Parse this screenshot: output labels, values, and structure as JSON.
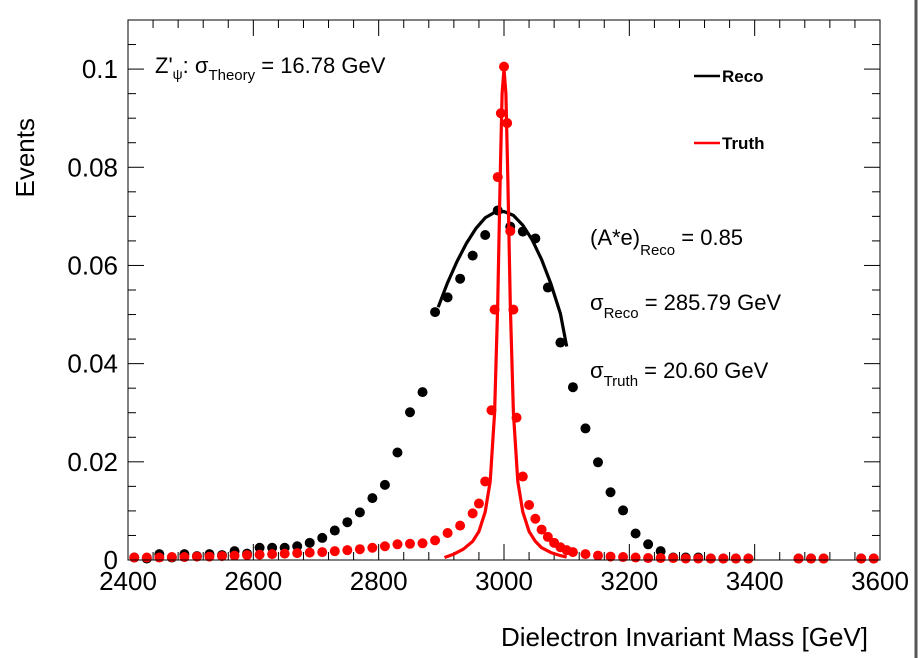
{
  "chart_data": {
    "type": "scatter",
    "xlabel": "Dielectron Invariant Mass [GeV]",
    "ylabel": "Events",
    "xlim": [
      2400,
      3600
    ],
    "ylim": [
      0,
      0.11
    ],
    "xticks": [
      "2400",
      "2600",
      "2800",
      "3000",
      "3200",
      "3400",
      "3600"
    ],
    "yticks": [
      "0",
      "0.02",
      "0.04",
      "0.06",
      "0.08",
      "0.1"
    ],
    "ytick_values": [
      0,
      0.02,
      0.04,
      0.06,
      0.08,
      0.1
    ],
    "xtick_values": [
      2400,
      2600,
      2800,
      3000,
      3200,
      3400,
      3600
    ],
    "grid": false,
    "legend_position": "top-right",
    "colors": {
      "reco": "#000000",
      "truth": "#ff0000"
    },
    "legend": [
      {
        "label": "Reco",
        "color": "#000000"
      },
      {
        "label": "Truth",
        "color": "#ff0000"
      }
    ],
    "annotations": {
      "theory": {
        "main": "Z'",
        "sub1": "ψ",
        "mid": ": σ",
        "sub2": "Theory",
        "tail": " = 16.78 GeV"
      },
      "acceptance": {
        "main": "(A*e)",
        "sub": "Reco",
        "tail": " = 0.85"
      },
      "sigma_reco": {
        "main": "σ",
        "sub": "Reco",
        "tail": " = 285.79 GeV"
      },
      "sigma_truth": {
        "main": "σ",
        "sub": "Truth",
        "tail": " = 20.60 GeV"
      }
    },
    "series": [
      {
        "name": "Reco",
        "kind": "points",
        "color": "#000000",
        "x": [
          2410,
          2430,
          2450,
          2470,
          2490,
          2510,
          2530,
          2550,
          2570,
          2590,
          2610,
          2630,
          2650,
          2670,
          2690,
          2710,
          2730,
          2750,
          2770,
          2790,
          2810,
          2830,
          2850,
          2870,
          2890,
          2910,
          2930,
          2950,
          2970,
          2990,
          3010,
          3030,
          3050,
          3070,
          3090,
          3110,
          3130,
          3150,
          3170,
          3190,
          3210,
          3230,
          3250,
          3270,
          3290,
          3310,
          3330,
          3350,
          3370,
          3390,
          3470,
          3490,
          3510,
          3570,
          3590
        ],
        "y": [
          0.0005,
          0.0003,
          0.0012,
          0.0005,
          0.0012,
          0.0008,
          0.0012,
          0.001,
          0.0018,
          0.0013,
          0.0025,
          0.0025,
          0.0025,
          0.0028,
          0.0035,
          0.0045,
          0.006,
          0.0077,
          0.0097,
          0.0126,
          0.0153,
          0.0219,
          0.0301,
          0.0342,
          0.0505,
          0.0535,
          0.0573,
          0.062,
          0.0662,
          0.0712,
          0.0679,
          0.0669,
          0.0655,
          0.0555,
          0.0443,
          0.0352,
          0.0268,
          0.0199,
          0.0138,
          0.0101,
          0.0054,
          0.0032,
          0.0018,
          0.0005,
          0.0005,
          0.0005,
          0.0003,
          0.0003,
          0.0003,
          0.0003,
          0.0003,
          0.0003,
          0.0003,
          0.0003,
          0.0003
        ]
      },
      {
        "name": "Truth",
        "kind": "points",
        "color": "#ff0000",
        "x": [
          2410,
          2430,
          2450,
          2470,
          2490,
          2510,
          2530,
          2550,
          2570,
          2590,
          2610,
          2630,
          2650,
          2670,
          2690,
          2710,
          2730,
          2750,
          2770,
          2790,
          2810,
          2830,
          2850,
          2870,
          2890,
          2910,
          2930,
          2950,
          2960,
          2970,
          2980,
          2985,
          2990,
          2995,
          3000,
          3005,
          3010,
          3015,
          3020,
          3030,
          3040,
          3050,
          3060,
          3070,
          3080,
          3090,
          3100,
          3110,
          3130,
          3150,
          3170,
          3190,
          3210,
          3230,
          3250,
          3270,
          3290,
          3310,
          3330,
          3350,
          3370,
          3390,
          3470,
          3490,
          3510,
          3570,
          3590
        ],
        "y": [
          0.0005,
          0.0005,
          0.0005,
          0.0006,
          0.0006,
          0.0007,
          0.0007,
          0.0008,
          0.0009,
          0.001,
          0.0011,
          0.0012,
          0.0013,
          0.0014,
          0.0015,
          0.0016,
          0.0018,
          0.002,
          0.0022,
          0.0025,
          0.0028,
          0.0032,
          0.0033,
          0.0034,
          0.004,
          0.0055,
          0.007,
          0.0095,
          0.0115,
          0.016,
          0.0305,
          0.051,
          0.078,
          0.091,
          0.1005,
          0.089,
          0.067,
          0.051,
          0.029,
          0.017,
          0.0112,
          0.0084,
          0.0062,
          0.0047,
          0.0035,
          0.0026,
          0.002,
          0.0016,
          0.0012,
          0.0009,
          0.0007,
          0.0006,
          0.0005,
          0.0004,
          0.0004,
          0.0004,
          0.0003,
          0.0003,
          0.0003,
          0.0003,
          0.0003,
          0.0003,
          0.0003,
          0.0003,
          0.0003,
          0.0003,
          0.0003
        ]
      },
      {
        "name": "Reco fit",
        "kind": "curve",
        "color": "#000000",
        "x": [
          2895,
          2910,
          2925,
          2940,
          2955,
          2970,
          2985,
          3000,
          3015,
          3030,
          3045,
          3060,
          3075,
          3090,
          3100
        ],
        "y": [
          0.0515,
          0.0565,
          0.0608,
          0.0645,
          0.0675,
          0.0697,
          0.0708,
          0.071,
          0.0702,
          0.0682,
          0.0652,
          0.0612,
          0.0562,
          0.0502,
          0.0435
        ]
      },
      {
        "name": "Truth fit",
        "kind": "curve",
        "color": "#ff0000",
        "x": [
          2905,
          2920,
          2935,
          2950,
          2960,
          2970,
          2978,
          2985,
          2990,
          2994,
          2997,
          3000,
          3003,
          3006,
          3010,
          3015,
          3022,
          3030,
          3040,
          3050,
          3060,
          3075,
          3090,
          3100
        ],
        "y": [
          0.0005,
          0.0012,
          0.0022,
          0.0038,
          0.0058,
          0.0098,
          0.016,
          0.03,
          0.052,
          0.078,
          0.095,
          0.1,
          0.095,
          0.078,
          0.052,
          0.03,
          0.016,
          0.0098,
          0.0058,
          0.0038,
          0.0025,
          0.0015,
          0.0009,
          0.0006
        ]
      }
    ]
  }
}
